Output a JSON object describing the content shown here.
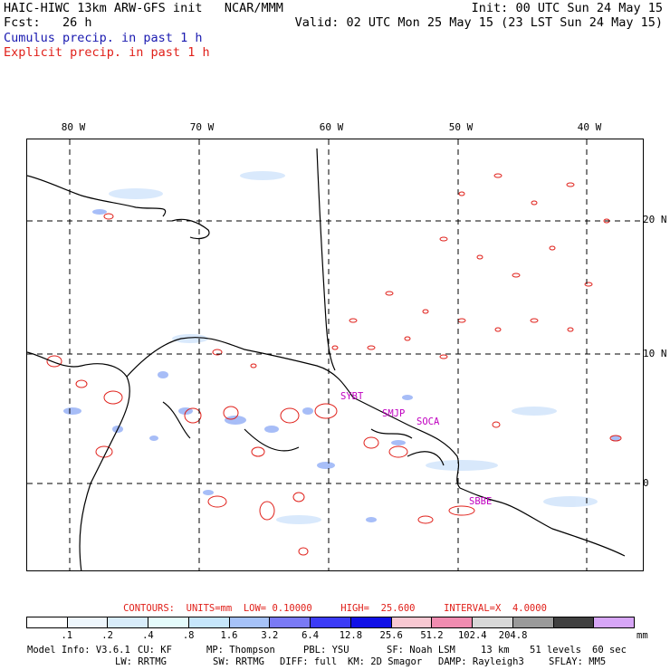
{
  "header": {
    "line1_left": "HAIC-HIWC 13km ARW-GFS init   NCAR/MMM",
    "line1_right": "Init: 00 UTC Sun 24 May 15",
    "line2_left": "Fcst:   26 h",
    "line2_right": "Valid: 02 UTC Mon 25 May 15 (23 LST Sun 24 May 15)",
    "line3": "Cumulus precip. in past 1 h",
    "line4": "Explicit precip. in past 1 h"
  },
  "axes": {
    "lon_labels": [
      "80 W",
      "70 W",
      "60 W",
      "50 W",
      "40 W"
    ],
    "lat_labels": [
      "20 N",
      "10 N",
      "0"
    ]
  },
  "stations": [
    "SYBT",
    "SMJP",
    "SOCA",
    "SBBE"
  ],
  "contours": {
    "text": "CONTOURS:  UNITS=mm  LOW= 0.10000     HIGH=  25.600     INTERVAL=X  4.0000"
  },
  "colorbar": {
    "labels": [
      ".1",
      ".2",
      ".4",
      ".8",
      "1.6",
      "3.2",
      "6.4",
      "12.8",
      "25.6",
      "51.2",
      "102.4",
      "204.8"
    ],
    "unit": "mm",
    "colors": [
      "#ffffff",
      "#eef6fc",
      "#d8ecfa",
      "#e4fbfb",
      "#c6e6fb",
      "#a6c2f8",
      "#7a7af5",
      "#3b3bf6",
      "#1010e6",
      "#f8c8d2",
      "#f08cb0",
      "#d8d8d8",
      "#9a9a9a",
      "#404040",
      "#d7a6f7"
    ]
  },
  "footer": {
    "line1": [
      "Model Info: V3.6.1",
      "CU: KF",
      "MP: Thompson",
      "PBL: YSU",
      "SF: Noah LSM",
      "13 km",
      "51 levels",
      "60 sec"
    ],
    "line2": [
      "LW: RRTMG",
      "SW: RRTMG",
      "DIFF: full",
      "KM: 2D Smagor",
      "DAMP: Rayleigh3",
      "SFLAY: MM5"
    ]
  }
}
